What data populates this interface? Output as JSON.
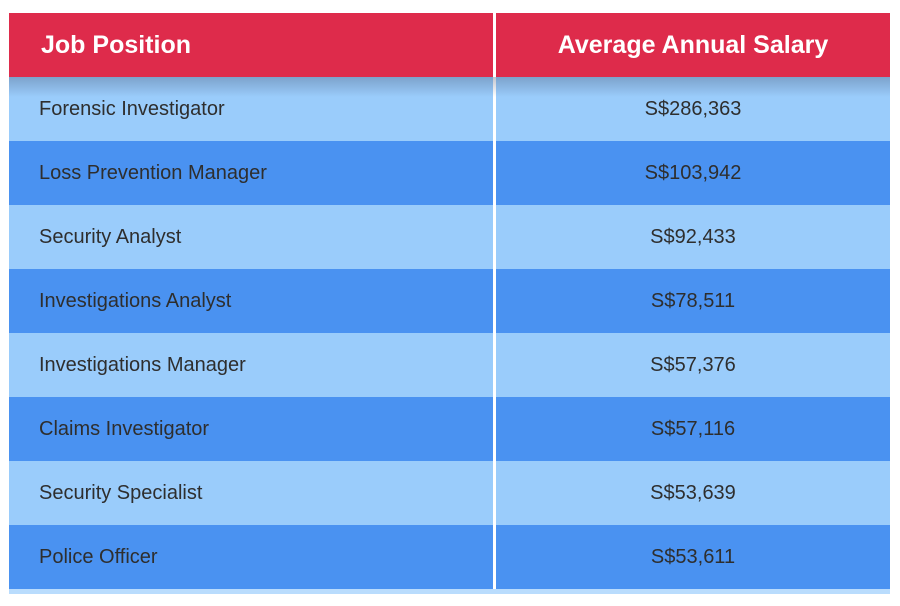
{
  "table": {
    "header": {
      "job_position_label": "Job Position",
      "salary_label": "Average Annual Salary"
    },
    "rows": [
      {
        "position": "Forensic Investigator",
        "salary": "S$286,363"
      },
      {
        "position": "Loss Prevention Manager",
        "salary": "S$103,942"
      },
      {
        "position": "Security Analyst",
        "salary": "S$92,433"
      },
      {
        "position": "Investigations Analyst",
        "salary": "S$78,511"
      },
      {
        "position": "Investigations Manager",
        "salary": "S$57,376"
      },
      {
        "position": "Claims Investigator",
        "salary": "S$57,116"
      },
      {
        "position": "Security Specialist",
        "salary": "S$53,639"
      },
      {
        "position": "Police Officer",
        "salary": "S$53,611"
      }
    ]
  },
  "colors": {
    "header_bg": "#DE2B4B",
    "header_text": "#FFFFFF",
    "row_light": "#9ACCFB",
    "row_dark": "#4A92F1",
    "row_text": "#2E2E2E",
    "divider": "#FFFFFF",
    "bottom_strip": "#B9DCFD"
  },
  "chart_data": {
    "type": "table",
    "columns": [
      "Job Position",
      "Average Annual Salary"
    ],
    "categories": [
      "Forensic Investigator",
      "Loss Prevention Manager",
      "Security Analyst",
      "Investigations Analyst",
      "Investigations Manager",
      "Claims Investigator",
      "Security Specialist",
      "Police Officer"
    ],
    "values": [
      286363,
      103942,
      92433,
      78511,
      57376,
      57116,
      53639,
      53611
    ],
    "display_values": [
      "S$286,363",
      "S$103,942",
      "S$92,433",
      "S$78,511",
      "S$57,376",
      "S$57,116",
      "S$53,639",
      "S$53,611"
    ],
    "currency_prefix": "S$",
    "sort": "descending by salary",
    "layout": {
      "header_color": "#DE2B4B",
      "alternating_row_colors": [
        "#9ACCFB",
        "#4A92F1"
      ],
      "column_divider": "white vertical line",
      "grid": false
    }
  }
}
